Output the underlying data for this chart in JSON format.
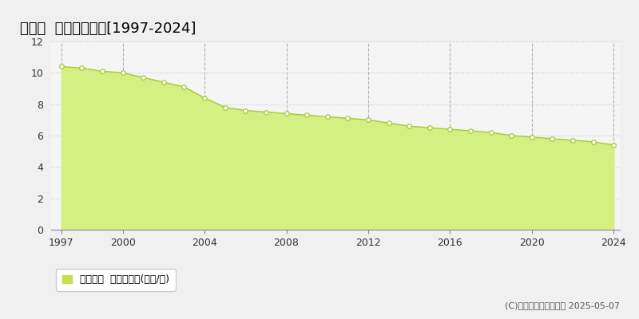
{
  "title": "高森町  基準地価推移[1997-2024]",
  "years": [
    1997,
    1998,
    1999,
    2000,
    2001,
    2002,
    2003,
    2004,
    2005,
    2006,
    2007,
    2008,
    2009,
    2010,
    2011,
    2012,
    2013,
    2014,
    2015,
    2016,
    2017,
    2018,
    2019,
    2020,
    2021,
    2022,
    2023,
    2024
  ],
  "values": [
    10.4,
    10.3,
    10.1,
    10.0,
    9.7,
    9.4,
    9.1,
    8.4,
    7.8,
    7.6,
    7.5,
    7.4,
    7.3,
    7.2,
    7.1,
    7.0,
    6.8,
    6.6,
    6.5,
    6.4,
    6.3,
    6.2,
    6.0,
    5.9,
    5.8,
    5.7,
    5.6,
    5.4
  ],
  "fill_color": "#d4ef82",
  "line_color": "#a8c832",
  "marker_color": "#ffffff",
  "marker_edge_color": "#a8c832",
  "background_color": "#f0f0f0",
  "plot_bg_color": "#f5f5f5",
  "grid_color_h": "#c8c8c8",
  "grid_color_v": "#b0b0b0",
  "ylim": [
    0,
    12
  ],
  "yticks": [
    0,
    2,
    4,
    6,
    8,
    10,
    12
  ],
  "xlim_start": 1997,
  "xlim_end": 2024,
  "xticks": [
    1997,
    2000,
    2004,
    2008,
    2012,
    2016,
    2020,
    2024
  ],
  "legend_label": "基準地価  平均坪単価(万円/坪)",
  "legend_color": "#c8e050",
  "copyright_text": "(C)土地価格ドットコム 2025-05-07",
  "title_fontsize": 13,
  "tick_fontsize": 9,
  "legend_fontsize": 9,
  "copyright_fontsize": 8
}
